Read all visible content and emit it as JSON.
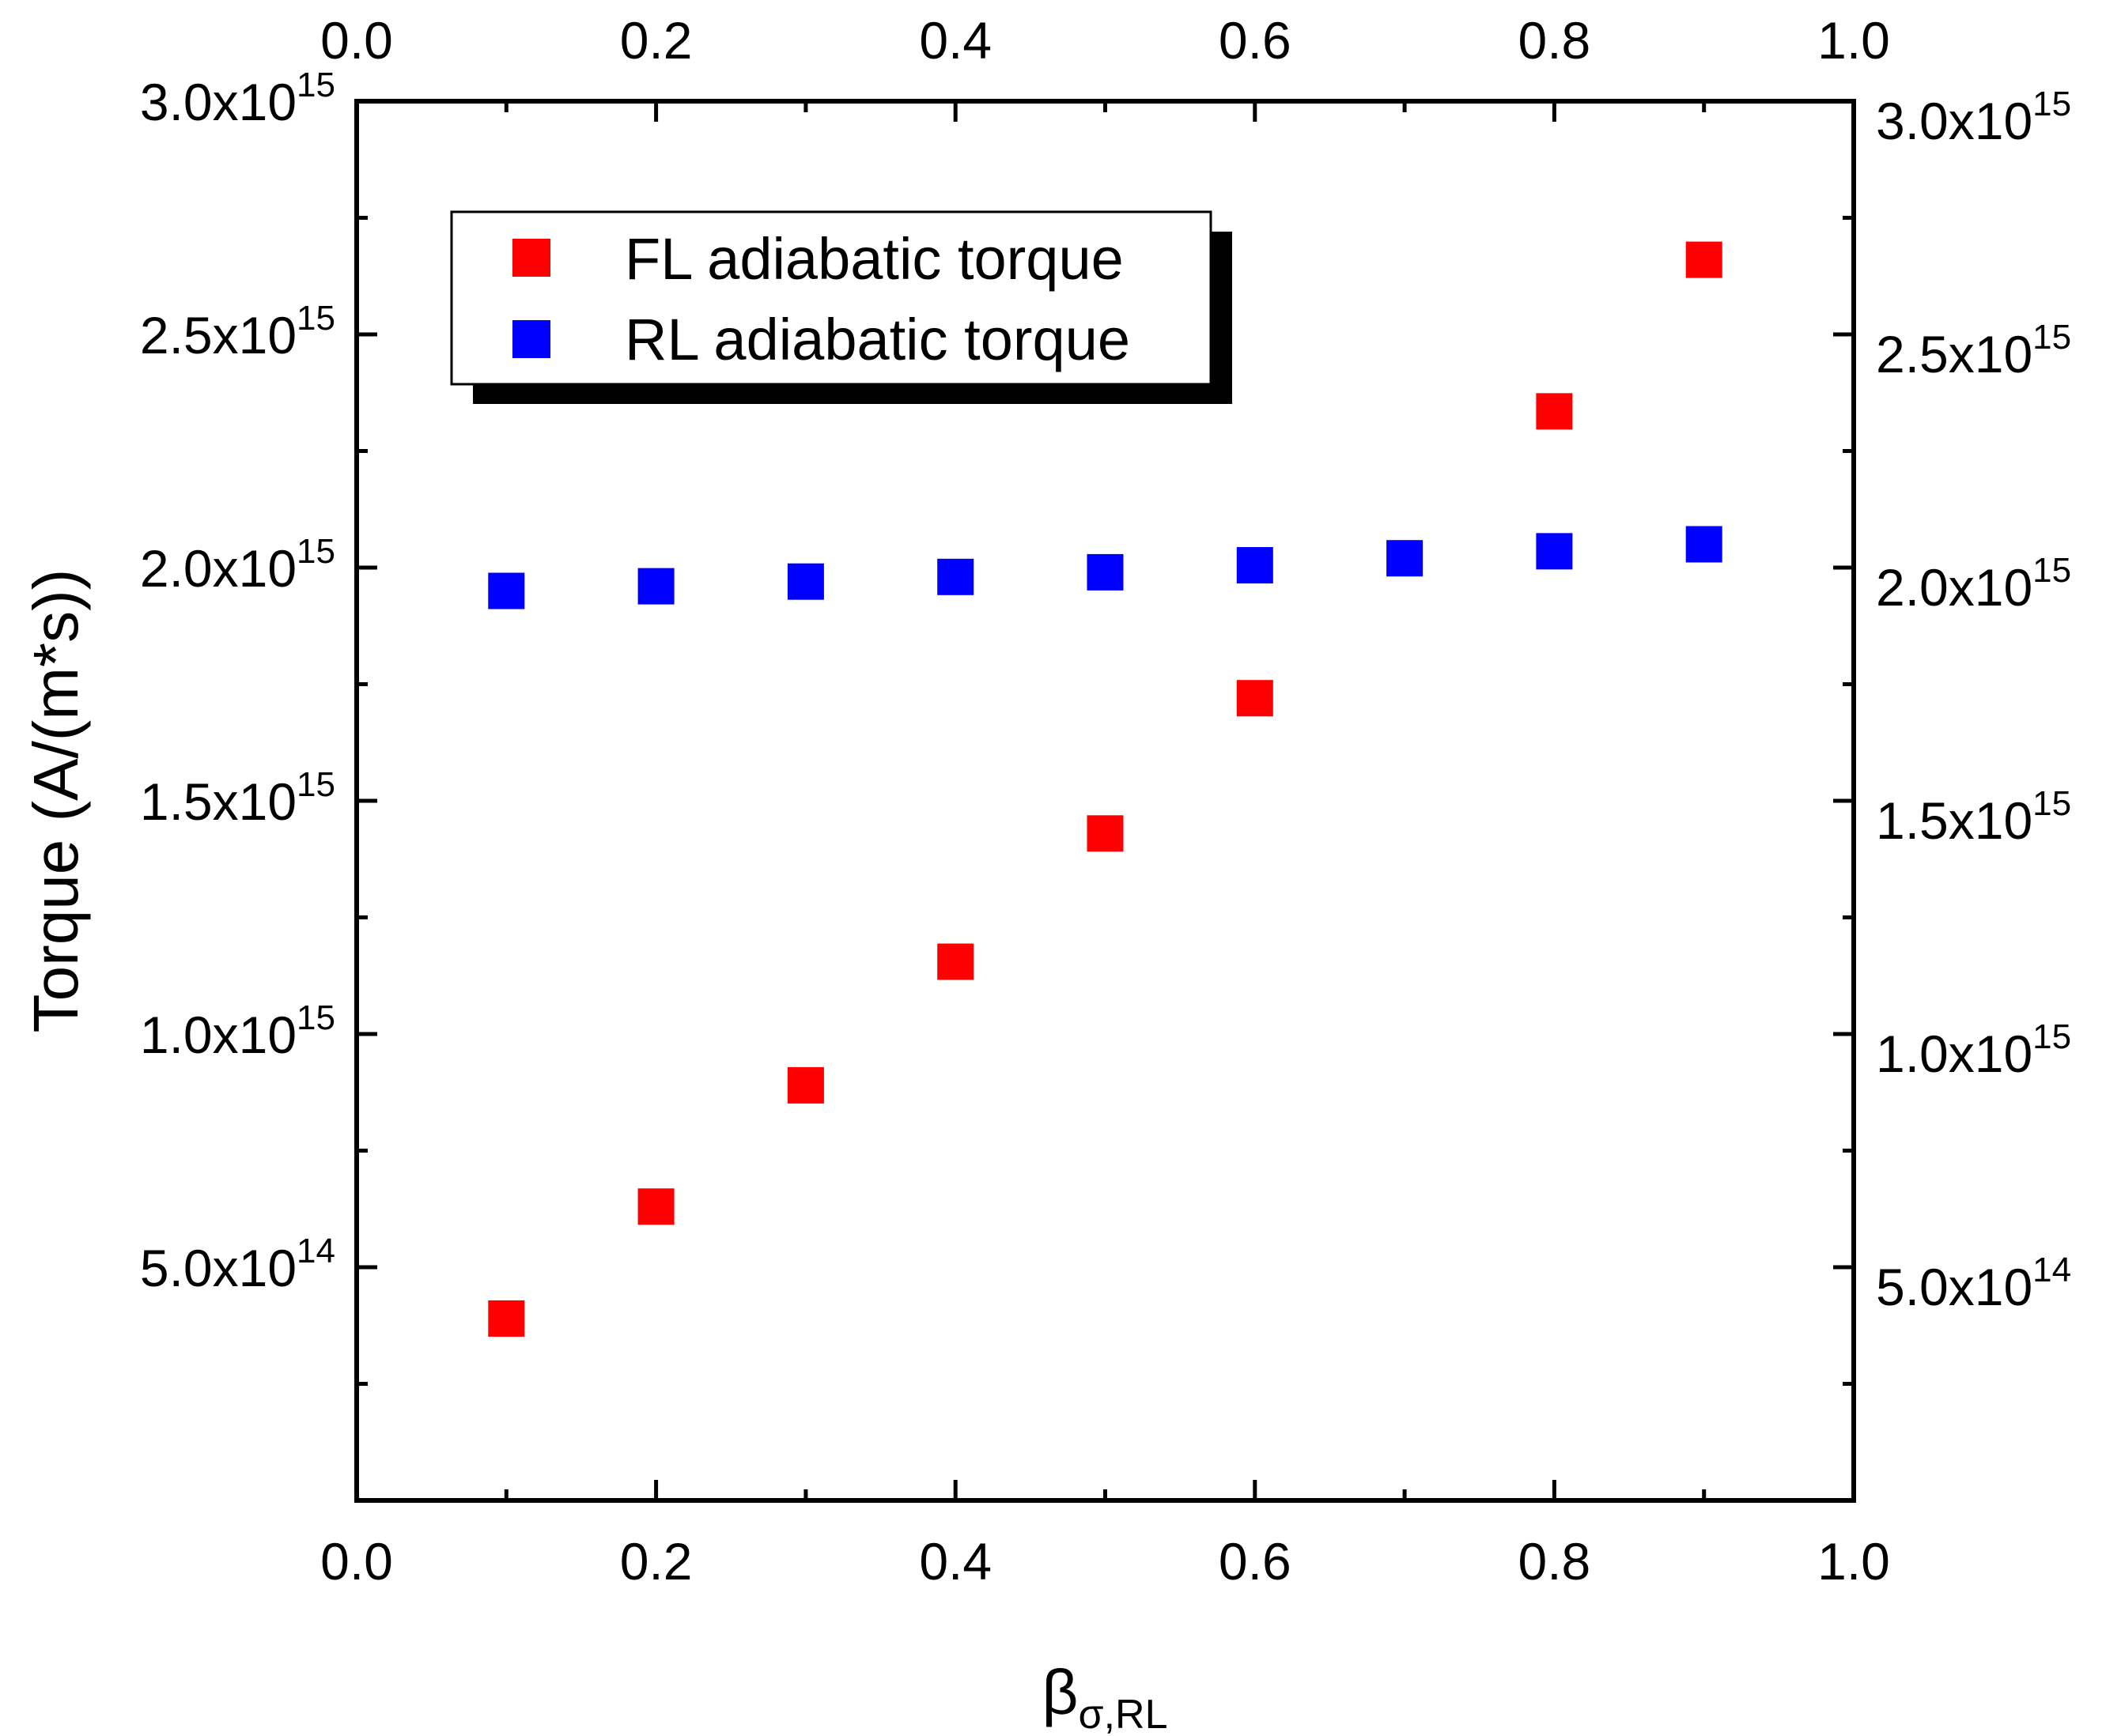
{
  "chart_data": {
    "type": "scatter",
    "title": "",
    "xlabel": "β",
    "xlabel_subscript": "σ,RL",
    "ylabel": "Torque (A/(m*s))",
    "xlim": [
      0.0,
      1.0
    ],
    "ylim": [
      0,
      3000000000000000.0
    ],
    "x_ticks": [
      {
        "value": 0.0,
        "label": "0.0"
      },
      {
        "value": 0.2,
        "label": "0.2"
      },
      {
        "value": 0.4,
        "label": "0.4"
      },
      {
        "value": 0.6,
        "label": "0.6"
      },
      {
        "value": 0.8,
        "label": "0.8"
      },
      {
        "value": 1.0,
        "label": "1.0"
      }
    ],
    "y_ticks": [
      {
        "value": 500000000000000.0,
        "mantissa": "5.0x10",
        "exponent": "14"
      },
      {
        "value": 1000000000000000.0,
        "mantissa": "1.0x10",
        "exponent": "15"
      },
      {
        "value": 1500000000000000.0,
        "mantissa": "1.5x10",
        "exponent": "15"
      },
      {
        "value": 2000000000000000.0,
        "mantissa": "2.0x10",
        "exponent": "15"
      },
      {
        "value": 2500000000000000.0,
        "mantissa": "2.5x10",
        "exponent": "15"
      },
      {
        "value": 3000000000000000.0,
        "mantissa": "3.0x10",
        "exponent": "15"
      }
    ],
    "legend": {
      "position": "top-left",
      "entries": [
        {
          "label": "FL adiabatic torque",
          "color": "#ff0000"
        },
        {
          "label": "RL adiabatic torque",
          "color": "#0000ff"
        }
      ]
    },
    "series": [
      {
        "name": "FL adiabatic torque",
        "color": "#ff0000",
        "marker": "square",
        "x": [
          0.1,
          0.2,
          0.3,
          0.4,
          0.5,
          0.6,
          0.8,
          0.9
        ],
        "y": [
          390000000000000.0,
          630000000000000.0,
          890000000000000.0,
          1155000000000000.0,
          1430000000000000.0,
          1720000000000000.0,
          2335000000000000.0,
          2660000000000000.0
        ]
      },
      {
        "name": "RL adiabatic torque",
        "color": "#0000ff",
        "marker": "square",
        "x": [
          0.1,
          0.2,
          0.3,
          0.4,
          0.5,
          0.6,
          0.7,
          0.8,
          0.9
        ],
        "y": [
          1950000000000000.0,
          1960000000000000.0,
          1970000000000000.0,
          1980000000000000.0,
          1990000000000000.0,
          2005000000000000.0,
          2020000000000000.0,
          2035000000000000.0,
          2050000000000000.0
        ]
      }
    ]
  }
}
